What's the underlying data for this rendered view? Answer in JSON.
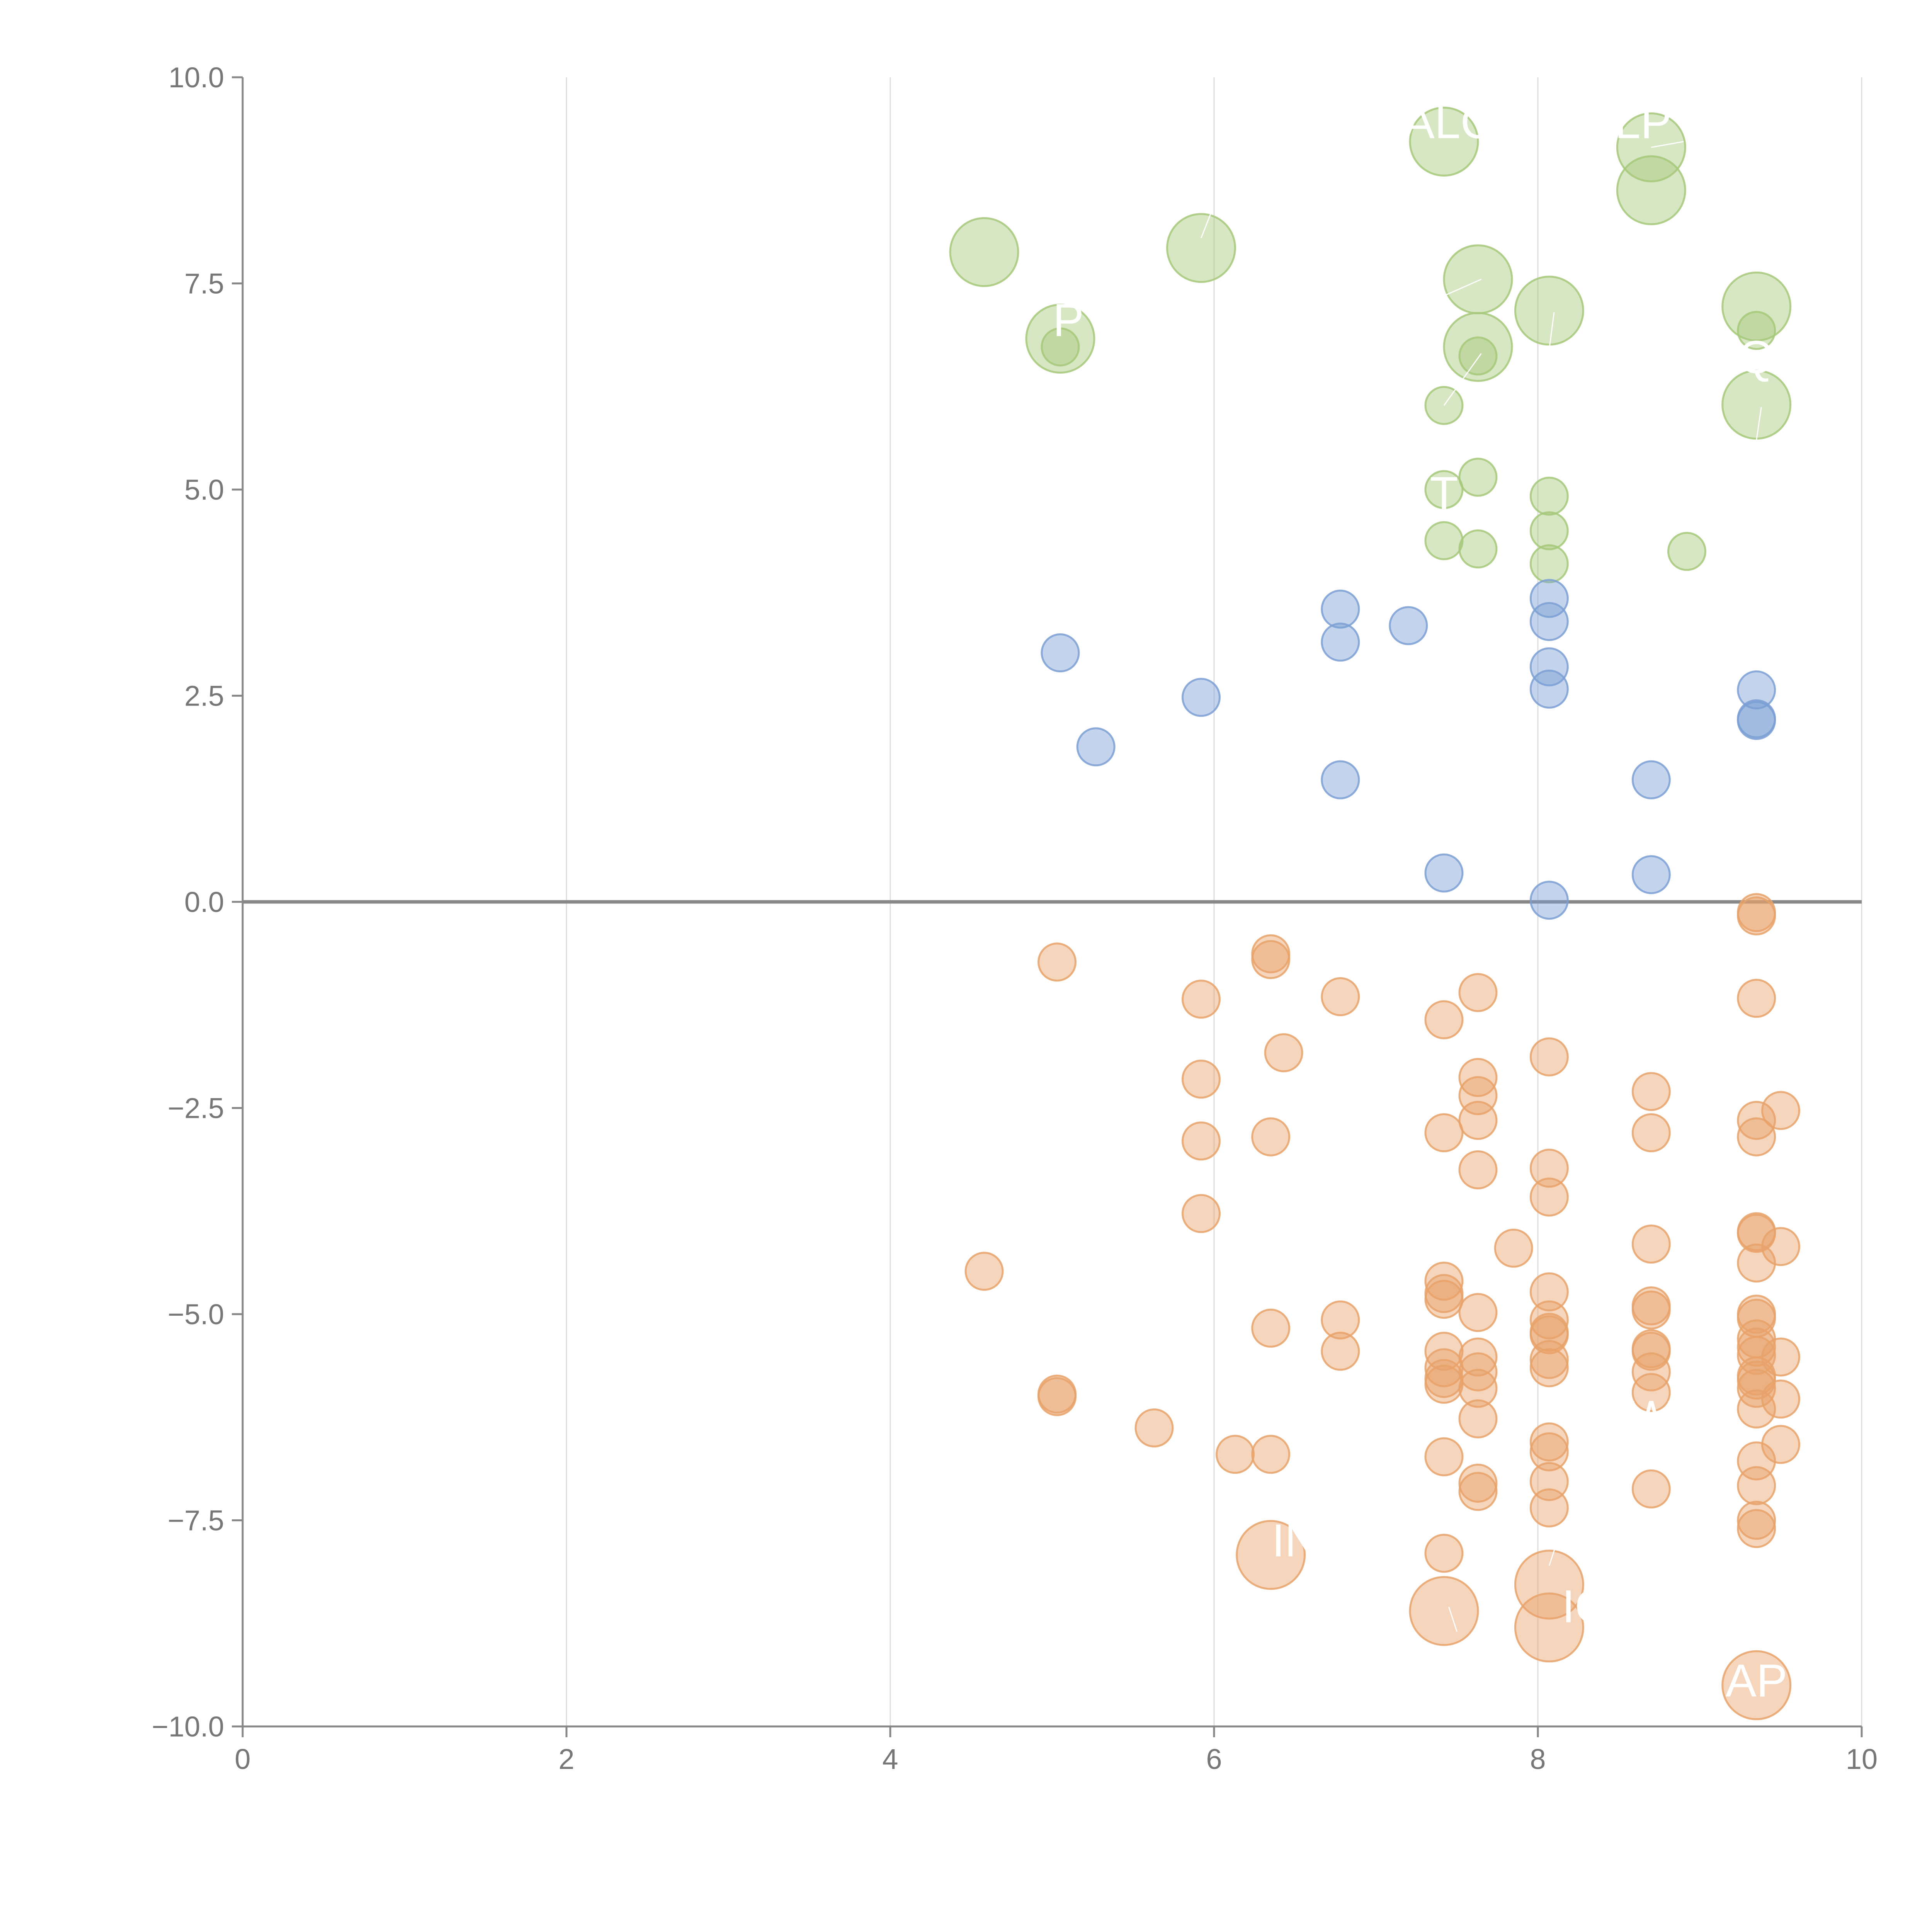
{
  "chart_data": {
    "type": "scatter",
    "title": "",
    "xlabel": "",
    "ylabel": "",
    "xlim": [
      0,
      10
    ],
    "ylim": [
      -10,
      10
    ],
    "x_ticks": [
      0,
      2,
      4,
      6,
      8,
      10
    ],
    "y_ticks": [
      -10,
      -7.5,
      -5,
      -2.5,
      0,
      2.5,
      5,
      7.5,
      10
    ],
    "x_tick_labels": [
      "0",
      "2",
      "4",
      "6",
      "8",
      "10"
    ],
    "y_tick_labels": [
      "−10.0",
      "−7.5",
      "−5.0",
      "−2.5",
      "0.0",
      "2.5",
      "5.0",
      "7.5",
      "10.0"
    ],
    "x_grid": true,
    "y_grid": false,
    "zero_line": true,
    "colors": {
      "green": "#a6c87a",
      "blue": "#7b9fd4",
      "orange": "#e8a26a",
      "axis": "#888888",
      "grid": "#dddddd",
      "tick_text": "#777777",
      "label_text": "#ffffff"
    },
    "series": [
      {
        "color": "green",
        "points": [
          {
            "x": 4.58,
            "y": 7.88,
            "s": "large"
          },
          {
            "x": 5.05,
            "y": 6.83,
            "s": "large"
          },
          {
            "x": 5.05,
            "y": 6.73,
            "s": "small"
          },
          {
            "x": 5.92,
            "y": 7.93,
            "s": "large"
          },
          {
            "x": 7.42,
            "y": 9.22,
            "s": "large"
          },
          {
            "x": 7.42,
            "y": 6.02,
            "s": "small"
          },
          {
            "x": 7.42,
            "y": 5.0,
            "s": "small"
          },
          {
            "x": 7.42,
            "y": 4.38,
            "s": "small"
          },
          {
            "x": 7.63,
            "y": 7.55,
            "s": "large"
          },
          {
            "x": 7.63,
            "y": 6.73,
            "s": "large"
          },
          {
            "x": 7.63,
            "y": 6.62,
            "s": "small"
          },
          {
            "x": 7.63,
            "y": 5.15,
            "s": "small"
          },
          {
            "x": 7.63,
            "y": 4.28,
            "s": "small"
          },
          {
            "x": 8.07,
            "y": 7.17,
            "s": "large"
          },
          {
            "x": 8.07,
            "y": 4.92,
            "s": "small"
          },
          {
            "x": 8.07,
            "y": 4.5,
            "s": "small"
          },
          {
            "x": 8.07,
            "y": 4.1,
            "s": "small"
          },
          {
            "x": 8.7,
            "y": 9.15,
            "s": "large"
          },
          {
            "x": 8.7,
            "y": 8.63,
            "s": "large"
          },
          {
            "x": 9.35,
            "y": 7.22,
            "s": "large"
          },
          {
            "x": 9.35,
            "y": 6.93,
            "s": "small"
          },
          {
            "x": 9.35,
            "y": 6.03,
            "s": "large"
          },
          {
            "x": 8.92,
            "y": 4.25,
            "s": "small"
          }
        ]
      },
      {
        "color": "blue",
        "points": [
          {
            "x": 5.05,
            "y": 3.02,
            "s": "small"
          },
          {
            "x": 5.27,
            "y": 1.88,
            "s": "small"
          },
          {
            "x": 5.92,
            "y": 2.48,
            "s": "small"
          },
          {
            "x": 6.78,
            "y": 3.55,
            "s": "small"
          },
          {
            "x": 6.78,
            "y": 3.15,
            "s": "small"
          },
          {
            "x": 6.78,
            "y": 1.48,
            "s": "small"
          },
          {
            "x": 7.2,
            "y": 3.35,
            "s": "small"
          },
          {
            "x": 7.42,
            "y": 0.35,
            "s": "small"
          },
          {
            "x": 8.07,
            "y": 3.68,
            "s": "small"
          },
          {
            "x": 8.07,
            "y": 3.4,
            "s": "small"
          },
          {
            "x": 8.07,
            "y": 2.85,
            "s": "small"
          },
          {
            "x": 8.07,
            "y": 2.58,
            "s": "small"
          },
          {
            "x": 8.07,
            "y": 0.02,
            "s": "small"
          },
          {
            "x": 8.7,
            "y": 1.48,
            "s": "small"
          },
          {
            "x": 8.7,
            "y": 0.33,
            "s": "small"
          },
          {
            "x": 9.35,
            "y": 2.57,
            "s": "small"
          },
          {
            "x": 9.35,
            "y": 2.22,
            "s": "small"
          },
          {
            "x": 9.35,
            "y": 2.2,
            "s": "small"
          }
        ]
      },
      {
        "color": "orange",
        "points": [
          {
            "x": 4.58,
            "y": -4.48,
            "s": "small"
          },
          {
            "x": 5.03,
            "y": -0.73,
            "s": "small"
          },
          {
            "x": 5.03,
            "y": -5.97,
            "s": "small"
          },
          {
            "x": 5.03,
            "y": -6.0,
            "s": "small"
          },
          {
            "x": 5.63,
            "y": -6.38,
            "s": "small"
          },
          {
            "x": 5.92,
            "y": -1.18,
            "s": "small"
          },
          {
            "x": 5.92,
            "y": -2.15,
            "s": "small"
          },
          {
            "x": 5.92,
            "y": -2.9,
            "s": "small"
          },
          {
            "x": 5.92,
            "y": -3.78,
            "s": "small"
          },
          {
            "x": 6.13,
            "y": -6.7,
            "s": "small"
          },
          {
            "x": 6.35,
            "y": -0.63,
            "s": "small"
          },
          {
            "x": 6.35,
            "y": -0.7,
            "s": "small"
          },
          {
            "x": 6.35,
            "y": -2.85,
            "s": "small"
          },
          {
            "x": 6.35,
            "y": -5.17,
            "s": "small"
          },
          {
            "x": 6.35,
            "y": -6.7,
            "s": "small"
          },
          {
            "x": 6.35,
            "y": -7.92,
            "s": "large"
          },
          {
            "x": 6.43,
            "y": -1.83,
            "s": "small"
          },
          {
            "x": 6.78,
            "y": -1.15,
            "s": "small"
          },
          {
            "x": 6.78,
            "y": -5.07,
            "s": "small"
          },
          {
            "x": 6.78,
            "y": -5.45,
            "s": "small"
          },
          {
            "x": 7.42,
            "y": -1.43,
            "s": "small"
          },
          {
            "x": 7.42,
            "y": -2.8,
            "s": "small"
          },
          {
            "x": 7.42,
            "y": -4.6,
            "s": "small"
          },
          {
            "x": 7.42,
            "y": -4.75,
            "s": "small"
          },
          {
            "x": 7.42,
            "y": -4.82,
            "s": "small"
          },
          {
            "x": 7.42,
            "y": -5.45,
            "s": "small"
          },
          {
            "x": 7.42,
            "y": -5.65,
            "s": "small"
          },
          {
            "x": 7.42,
            "y": -5.78,
            "s": "small"
          },
          {
            "x": 7.42,
            "y": -5.85,
            "s": "small"
          },
          {
            "x": 7.42,
            "y": -6.73,
            "s": "small"
          },
          {
            "x": 7.42,
            "y": -7.9,
            "s": "small"
          },
          {
            "x": 7.42,
            "y": -8.6,
            "s": "large"
          },
          {
            "x": 7.63,
            "y": -1.1,
            "s": "small"
          },
          {
            "x": 7.63,
            "y": -2.13,
            "s": "small"
          },
          {
            "x": 7.63,
            "y": -2.35,
            "s": "small"
          },
          {
            "x": 7.63,
            "y": -2.65,
            "s": "small"
          },
          {
            "x": 7.63,
            "y": -3.25,
            "s": "small"
          },
          {
            "x": 7.63,
            "y": -4.98,
            "s": "small"
          },
          {
            "x": 7.63,
            "y": -5.52,
            "s": "small"
          },
          {
            "x": 7.63,
            "y": -5.7,
            "s": "small"
          },
          {
            "x": 7.63,
            "y": -5.9,
            "s": "small"
          },
          {
            "x": 7.63,
            "y": -6.27,
            "s": "small"
          },
          {
            "x": 7.63,
            "y": -7.05,
            "s": "small"
          },
          {
            "x": 7.63,
            "y": -7.15,
            "s": "small"
          },
          {
            "x": 7.85,
            "y": -4.2,
            "s": "small"
          },
          {
            "x": 8.07,
            "y": -1.88,
            "s": "small"
          },
          {
            "x": 8.07,
            "y": -3.23,
            "s": "small"
          },
          {
            "x": 8.07,
            "y": -3.58,
            "s": "small"
          },
          {
            "x": 8.07,
            "y": -4.73,
            "s": "small"
          },
          {
            "x": 8.07,
            "y": -5.07,
            "s": "small"
          },
          {
            "x": 8.07,
            "y": -5.22,
            "s": "small"
          },
          {
            "x": 8.07,
            "y": -5.25,
            "s": "small"
          },
          {
            "x": 8.07,
            "y": -5.55,
            "s": "small"
          },
          {
            "x": 8.07,
            "y": -5.65,
            "s": "small"
          },
          {
            "x": 8.07,
            "y": -6.55,
            "s": "small"
          },
          {
            "x": 8.07,
            "y": -6.67,
            "s": "small"
          },
          {
            "x": 8.07,
            "y": -7.03,
            "s": "small"
          },
          {
            "x": 8.07,
            "y": -7.35,
            "s": "small"
          },
          {
            "x": 8.07,
            "y": -8.28,
            "s": "large"
          },
          {
            "x": 8.07,
            "y": -8.8,
            "s": "large"
          },
          {
            "x": 8.7,
            "y": -2.3,
            "s": "small"
          },
          {
            "x": 8.7,
            "y": -2.8,
            "s": "small"
          },
          {
            "x": 8.7,
            "y": -4.15,
            "s": "small"
          },
          {
            "x": 8.7,
            "y": -4.9,
            "s": "small"
          },
          {
            "x": 8.7,
            "y": -4.95,
            "s": "small"
          },
          {
            "x": 8.7,
            "y": -5.42,
            "s": "small"
          },
          {
            "x": 8.7,
            "y": -5.45,
            "s": "small"
          },
          {
            "x": 8.7,
            "y": -5.7,
            "s": "small"
          },
          {
            "x": 8.7,
            "y": -5.95,
            "s": "small"
          },
          {
            "x": 8.7,
            "y": -7.12,
            "s": "small"
          },
          {
            "x": 9.35,
            "y": -0.13,
            "s": "small"
          },
          {
            "x": 9.35,
            "y": -0.17,
            "s": "small"
          },
          {
            "x": 9.35,
            "y": -1.17,
            "s": "small"
          },
          {
            "x": 9.35,
            "y": -2.65,
            "s": "small"
          },
          {
            "x": 9.35,
            "y": -2.85,
            "s": "small"
          },
          {
            "x": 9.35,
            "y": -4.0,
            "s": "small"
          },
          {
            "x": 9.35,
            "y": -4.02,
            "s": "small"
          },
          {
            "x": 9.35,
            "y": -4.38,
            "s": "small"
          },
          {
            "x": 9.35,
            "y": -5.0,
            "s": "small"
          },
          {
            "x": 9.35,
            "y": -5.05,
            "s": "small"
          },
          {
            "x": 9.35,
            "y": -5.3,
            "s": "small"
          },
          {
            "x": 9.35,
            "y": -5.4,
            "s": "small"
          },
          {
            "x": 9.35,
            "y": -5.5,
            "s": "small"
          },
          {
            "x": 9.35,
            "y": -5.75,
            "s": "small"
          },
          {
            "x": 9.35,
            "y": -5.8,
            "s": "small"
          },
          {
            "x": 9.35,
            "y": -5.9,
            "s": "small"
          },
          {
            "x": 9.35,
            "y": -6.15,
            "s": "small"
          },
          {
            "x": 9.35,
            "y": -6.78,
            "s": "small"
          },
          {
            "x": 9.35,
            "y": -7.08,
            "s": "small"
          },
          {
            "x": 9.35,
            "y": -7.5,
            "s": "small"
          },
          {
            "x": 9.35,
            "y": -7.6,
            "s": "small"
          },
          {
            "x": 9.35,
            "y": -9.5,
            "s": "large"
          },
          {
            "x": 9.5,
            "y": -2.53,
            "s": "small"
          },
          {
            "x": 9.5,
            "y": -4.18,
            "s": "small"
          },
          {
            "x": 9.5,
            "y": -5.52,
            "s": "small"
          },
          {
            "x": 9.5,
            "y": -6.03,
            "s": "small"
          },
          {
            "x": 9.5,
            "y": -6.58,
            "s": "small"
          }
        ]
      }
    ],
    "annotations": [
      {
        "text": "ALC",
        "x": 7.45,
        "y": 9.45
      },
      {
        "text": "LP",
        "x": 8.65,
        "y": 9.45
      },
      {
        "text": "P",
        "x": 5.1,
        "y": 7.05
      },
      {
        "text": "Q",
        "x": 9.35,
        "y": 6.6
      },
      {
        "text": "T",
        "x": 7.42,
        "y": 4.95
      },
      {
        "text": "W",
        "x": 8.7,
        "y": -6.25
      },
      {
        "text": "IN",
        "x": 6.5,
        "y": -7.75
      },
      {
        "text": "IQ",
        "x": 8.3,
        "y": -8.55
      },
      {
        "text": "AP",
        "x": 9.35,
        "y": -9.45
      }
    ],
    "leader_lines": [
      {
        "x1": 5.92,
        "y1": 8.05,
        "x2": 5.98,
        "y2": 8.35
      },
      {
        "x1": 7.42,
        "y1": 6.02,
        "x2": 7.65,
        "y2": 6.65
      },
      {
        "x1": 7.42,
        "y1": 7.35,
        "x2": 7.65,
        "y2": 7.55
      },
      {
        "x1": 8.07,
        "y1": 6.7,
        "x2": 8.1,
        "y2": 7.15
      },
      {
        "x1": 9.35,
        "y1": 5.6,
        "x2": 9.38,
        "y2": 6.0
      },
      {
        "x1": 8.7,
        "y1": 9.15,
        "x2": 8.9,
        "y2": 9.22
      },
      {
        "x1": 7.45,
        "y1": -8.55,
        "x2": 7.5,
        "y2": -8.85
      },
      {
        "x1": 8.07,
        "y1": -8.05,
        "x2": 8.12,
        "y2": -7.75
      }
    ]
  }
}
